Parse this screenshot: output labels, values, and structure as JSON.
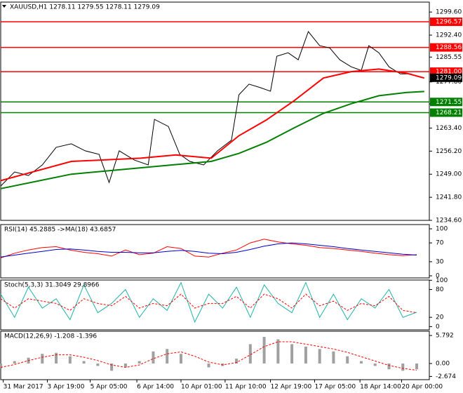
{
  "chart_data": [
    {
      "type": "line",
      "title": "XAUUSD,H1 1278.11 1279.55 1278.11 1279.09",
      "xlim": [
        0,
        340
      ],
      "xticks": [
        {
          "value": 2,
          "label": "31 Mar 2017"
        },
        {
          "value": 37,
          "label": "3 Apr 19:00"
        },
        {
          "value": 71,
          "label": "5 Apr 05:00"
        },
        {
          "value": 108,
          "label": "6 Apr 14:00"
        },
        {
          "value": 143,
          "label": "10 Apr 01:00"
        },
        {
          "value": 178,
          "label": "11 Apr 10:00"
        },
        {
          "value": 214,
          "label": "12 Apr 19:00"
        },
        {
          "value": 249,
          "label": "17 Apr 05:00"
        },
        {
          "value": 285,
          "label": "18 Apr 14:00"
        },
        {
          "value": 318,
          "label": "20 Apr 00:00"
        }
      ],
      "ylim": [
        1234.6,
        1302.7
      ],
      "yticks": [
        {
          "value": 1299.6,
          "label": "1299.60"
        },
        {
          "value": 1292.4,
          "label": "1292.40"
        },
        1285.55,
        {
          "value": 1277.8,
          "label": "1277.80"
        },
        1270.95,
        {
          "value": 1263.4,
          "label": "1263.40"
        },
        {
          "value": 1256.2,
          "label": "1256.20"
        },
        {
          "value": 1249,
          "label": "1249.00"
        },
        {
          "value": 1241.8,
          "label": "1241.80"
        },
        {
          "value": 1234.6,
          "label": "1234.60"
        }
      ],
      "series": [
        {
          "color": "#000000",
          "style": "solid",
          "width": 1,
          "x": [
            0,
            11,
            22,
            33,
            44,
            56,
            67,
            78,
            86,
            94,
            106,
            117,
            122,
            133,
            142,
            150,
            161,
            172,
            183,
            189,
            197,
            206,
            214,
            219,
            228,
            236,
            244,
            253,
            261,
            269,
            278,
            286,
            292,
            300,
            308,
            317,
            325,
            333
          ],
          "values": [
            1245.3,
            1249.7,
            1248.6,
            1251.9,
            1257.4,
            1258.5,
            1256.3,
            1255.2,
            1246.4,
            1256.3,
            1253.4,
            1251.9,
            1266.1,
            1263.9,
            1255.2,
            1253.0,
            1251.9,
            1256.3,
            1259.6,
            1273.8,
            1277.1,
            1276.0,
            1274.9,
            1285.8,
            1286.9,
            1284.7,
            1293.5,
            1289.1,
            1288.4,
            1284.7,
            1282.5,
            1281.4,
            1289.1,
            1286.9,
            1282.5,
            1280.3,
            1280.3,
            1279.2
          ]
        },
        {
          "color": "#ff0000",
          "style": "solid",
          "width": 2,
          "x": [
            0,
            56,
            111,
            139,
            167,
            189,
            211,
            233,
            256,
            278,
            300,
            322,
            336
          ],
          "values": [
            1247,
            1253,
            1254,
            1255,
            1254,
            1261,
            1266,
            1272,
            1279,
            1281,
            1281.8,
            1280.5,
            1279
          ]
        },
        {
          "color": "#008000",
          "style": "solid",
          "width": 2,
          "x": [
            0,
            56,
            111,
            139,
            167,
            189,
            211,
            233,
            256,
            278,
            300,
            322,
            336
          ],
          "values": [
            1244.5,
            1249,
            1251,
            1252,
            1253,
            1255.5,
            1259,
            1263.5,
            1268,
            1271,
            1273.5,
            1274.5,
            1274.8
          ]
        }
      ],
      "levels": [
        {
          "value": 1296.57,
          "color": "#ff0000"
        },
        {
          "value": 1288.56,
          "color": "#ff0000"
        },
        {
          "value": 1281,
          "label": "1281.00",
          "color": "#ff0000"
        },
        {
          "value": 1271.55,
          "color": "#008000"
        },
        {
          "value": 1268.21,
          "color": "#008000"
        }
      ],
      "last": 1279.09
    },
    {
      "type": "line",
      "title": "RSI(14) 45.2885 ->MA(18) 43.6857",
      "xlim": [
        0,
        340
      ],
      "ylim": [
        -4.5,
        109
      ],
      "yticks": [
        100,
        70,
        30,
        0
      ],
      "series": [
        {
          "color": "#ff0000",
          "style": "solid",
          "width": 1,
          "x": [
            0,
            11,
            22,
            33,
            44,
            55,
            66,
            77,
            88,
            99,
            110,
            121,
            132,
            143,
            154,
            165,
            176,
            187,
            198,
            209,
            220,
            231,
            242,
            253,
            264,
            275,
            286,
            297,
            308,
            319,
            330
          ],
          "values": [
            38,
            48,
            55,
            60,
            62,
            55,
            50,
            47,
            42,
            55,
            45,
            48,
            62,
            58,
            42,
            40,
            48,
            55,
            70,
            78,
            72,
            68,
            65,
            60,
            58,
            55,
            52,
            48,
            45,
            43,
            45
          ]
        },
        {
          "color": "#0000c8",
          "style": "solid",
          "width": 1,
          "x": [
            0,
            11,
            22,
            33,
            44,
            55,
            66,
            77,
            88,
            99,
            110,
            121,
            132,
            143,
            154,
            165,
            176,
            187,
            198,
            209,
            220,
            231,
            242,
            253,
            264,
            275,
            286,
            297,
            308,
            319,
            330
          ],
          "values": [
            40,
            44,
            48,
            52,
            56,
            57,
            55,
            52,
            50,
            50,
            49,
            49,
            52,
            54,
            52,
            48,
            47,
            50,
            56,
            63,
            68,
            70,
            68,
            65,
            62,
            58,
            55,
            52,
            49,
            46,
            44
          ]
        }
      ]
    },
    {
      "type": "line",
      "title": "Stoch(5,3,3) 31.3049 29.8966",
      "xlim": [
        0,
        340
      ],
      "ylim": [
        -7,
        100.5
      ],
      "yticks": [
        100,
        80,
        20,
        0
      ],
      "series": [
        {
          "color": "#20b2aa",
          "style": "solid",
          "width": 1,
          "x": [
            0,
            11,
            22,
            33,
            44,
            55,
            66,
            77,
            88,
            99,
            110,
            121,
            132,
            143,
            154,
            165,
            176,
            187,
            198,
            209,
            220,
            231,
            242,
            253,
            264,
            275,
            286,
            297,
            308,
            319,
            330
          ],
          "values": [
            70,
            20,
            85,
            40,
            60,
            15,
            90,
            30,
            50,
            80,
            20,
            60,
            35,
            95,
            10,
            70,
            40,
            85,
            20,
            90,
            50,
            30,
            95,
            20,
            70,
            15,
            60,
            40,
            80,
            20,
            31
          ]
        },
        {
          "color": "#ff0000",
          "style": "dashed",
          "width": 1,
          "x": [
            0,
            11,
            22,
            33,
            44,
            55,
            66,
            77,
            88,
            99,
            110,
            121,
            132,
            143,
            154,
            165,
            176,
            187,
            198,
            209,
            220,
            231,
            242,
            253,
            264,
            275,
            286,
            297,
            308,
            319,
            330
          ],
          "values": [
            60,
            40,
            60,
            55,
            50,
            35,
            60,
            50,
            45,
            65,
            40,
            50,
            45,
            70,
            40,
            50,
            50,
            65,
            40,
            70,
            60,
            40,
            70,
            45,
            55,
            35,
            50,
            45,
            65,
            35,
            30
          ]
        }
      ]
    },
    {
      "type": "line",
      "title": "MACD(12,26,9) -1.208 -1.396",
      "xlim": [
        0,
        340
      ],
      "ylim": [
        -3.34,
        6.67
      ],
      "yticks": [
        5.792,
        {
          "value": 0,
          "label": "0.00"
        },
        -2.674
      ],
      "series": [
        {
          "color": "#a0a0a0",
          "style": "histogram",
          "width": 4,
          "x": [
            0,
            11,
            22,
            33,
            44,
            55,
            66,
            77,
            88,
            99,
            110,
            121,
            132,
            143,
            154,
            165,
            176,
            187,
            198,
            209,
            220,
            231,
            242,
            253,
            264,
            275,
            286,
            297,
            308,
            319,
            330
          ],
          "values": [
            -1,
            0.5,
            1.2,
            2,
            2.2,
            1.5,
            0.5,
            -0.5,
            -1.5,
            -0.8,
            0.5,
            2.5,
            3,
            2,
            0,
            -0.8,
            -0.5,
            1,
            4,
            5.5,
            5,
            4,
            3.5,
            3,
            2.5,
            1.5,
            0.5,
            -0.5,
            -1.2,
            -1.5,
            -1.2
          ]
        },
        {
          "color": "#ff0000",
          "style": "dashed",
          "width": 1,
          "x": [
            0,
            11,
            22,
            33,
            44,
            55,
            66,
            77,
            88,
            99,
            110,
            121,
            132,
            143,
            154,
            165,
            176,
            187,
            198,
            209,
            220,
            231,
            242,
            253,
            264,
            275,
            286,
            297,
            308,
            319,
            330
          ],
          "values": [
            -0.8,
            -0.2,
            0.6,
            1.3,
            1.8,
            1.8,
            1.3,
            0.6,
            -0.3,
            -0.8,
            -0.3,
            1,
            2,
            2.4,
            1.5,
            0.3,
            -0.3,
            0.2,
            1.8,
            3.5,
            4.5,
            4.5,
            4,
            3.5,
            3,
            2.3,
            1.4,
            0.5,
            -0.4,
            -1,
            -1.4
          ]
        }
      ]
    }
  ]
}
